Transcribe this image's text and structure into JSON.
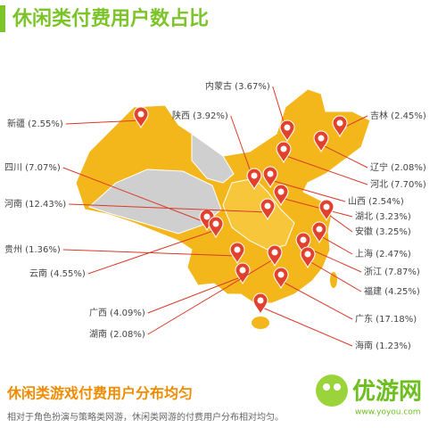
{
  "title": "休闲类付费用户数占比",
  "regions": [
    {
      "label": "内蒙古 (3.67%)"
    },
    {
      "label": "新疆 (2.55%)"
    },
    {
      "label": "陕西 (3.92%)"
    },
    {
      "label": "吉林 (2.45%)"
    },
    {
      "label": "四川 (7.07%)"
    },
    {
      "label": "辽宁 (2.08%)"
    },
    {
      "label": "河北 (7.70%)"
    },
    {
      "label": "河南 (12.43%)"
    },
    {
      "label": "山西 (2.54%)"
    },
    {
      "label": "湖北 (3.23%)"
    },
    {
      "label": "安徽 (3.25%)"
    },
    {
      "label": "贵州 (1.36%)"
    },
    {
      "label": "上海 (2.47%)"
    },
    {
      "label": "云南 (4.55%)"
    },
    {
      "label": "浙江 (7.87%)"
    },
    {
      "label": "福建 (4.25%)"
    },
    {
      "label": "广西 (4.09%)"
    },
    {
      "label": "广东 (17.18%)"
    },
    {
      "label": "湖南 (2.08%)"
    },
    {
      "label": "海南 (1.23%)"
    }
  ],
  "footer": {
    "heading": "休闲类游戏付费用户分布均匀",
    "text": "相对于角色扮演与策略类网游，休闲类网游的付费用户分布相对均匀。"
  },
  "logo": {
    "name": "优游网",
    "url": "www.yoyou.com"
  }
}
